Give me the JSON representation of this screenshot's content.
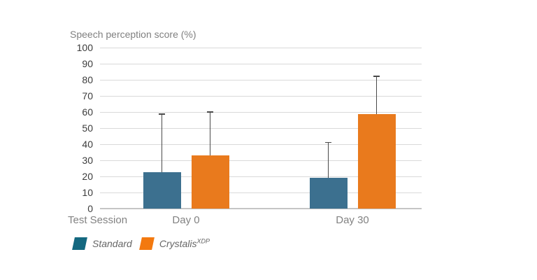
{
  "chart_data": {
    "type": "bar",
    "title": "Speech perception score (%)",
    "xlabel": "Test Session",
    "categories": [
      "Day 0",
      "Day 30"
    ],
    "series": [
      {
        "name": "Standard",
        "values": [
          22.5,
          19
        ],
        "error_upper": [
          58.5,
          41
        ],
        "color": "#3c708f"
      },
      {
        "name": "Crystalis XDP",
        "values": [
          33,
          58.5
        ],
        "error_upper": [
          60,
          82
        ],
        "color": "#e97a1d"
      }
    ],
    "ylim": [
      0,
      100
    ],
    "ytick_step": 10,
    "ytick_labels": [
      "100",
      "90",
      "80",
      "70",
      "60",
      "50",
      "40",
      "30",
      "20",
      "10",
      "0"
    ],
    "grid": "horizontal",
    "legend_position": "bottom-left",
    "error_bars": "upper-only"
  },
  "legend": {
    "items": [
      {
        "label": "Standard",
        "sup": "",
        "color": "#146880"
      },
      {
        "label": "Crystalis",
        "sup": "XDP",
        "color": "#f3790f"
      }
    ]
  },
  "colors": {
    "gridline": "#d9d9d9",
    "axis_line": "#c5c5c5",
    "error_bar": "#4a4a4a",
    "title_text": "#808080",
    "tick_text": "#3c3c3c",
    "category_text": "#828282",
    "legend_text": "#666666"
  }
}
